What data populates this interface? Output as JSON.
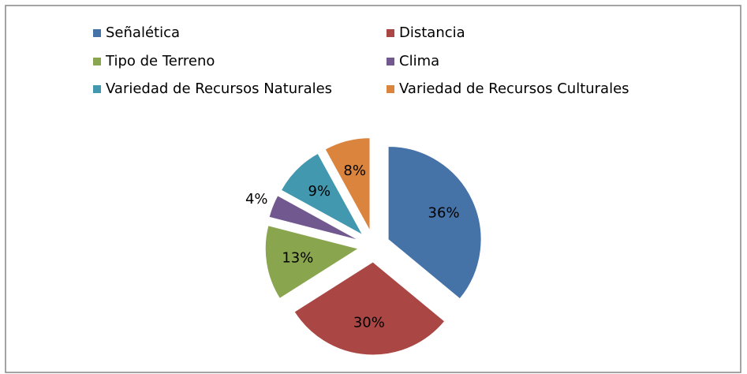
{
  "chart_data": {
    "type": "pie",
    "categories": [
      "Señalética",
      "Distancia",
      "Tipo de Terreno",
      "Clima",
      "Variedad de Recursos Naturales",
      "Variedad de Recursos Culturales"
    ],
    "values": [
      36,
      30,
      13,
      4,
      9,
      8
    ],
    "value_labels": [
      "36%",
      "30%",
      "13%",
      "4%",
      "9%",
      "8%"
    ],
    "colors": [
      "#4572a7",
      "#aa4643",
      "#89a54e",
      "#71588f",
      "#4198af",
      "#db843d"
    ],
    "legend": "top"
  }
}
